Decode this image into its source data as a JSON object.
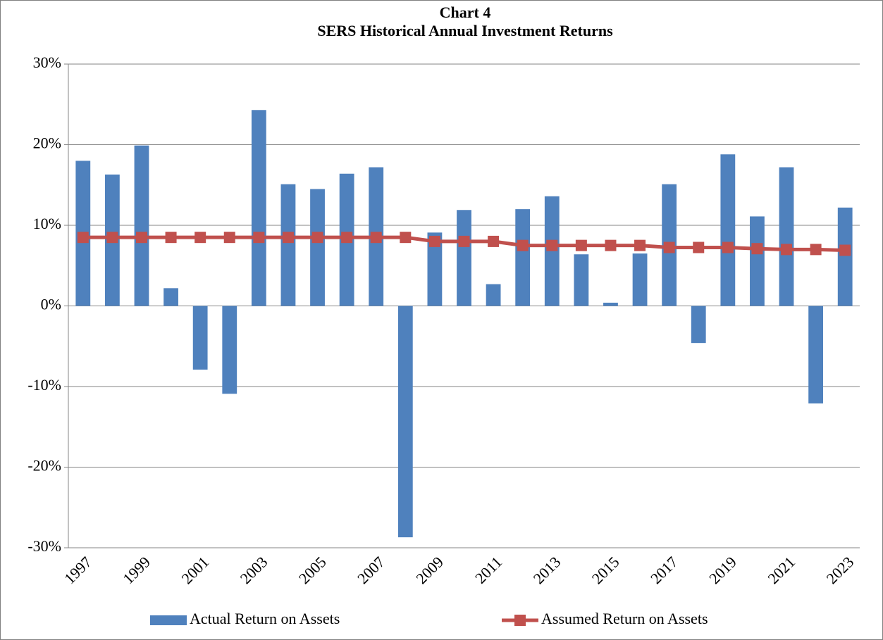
{
  "chart_data": {
    "type": "bar",
    "title": "Chart 4",
    "subtitle": "SERS Historical Annual Investment Returns",
    "categories": [
      "1997",
      null,
      "1999",
      null,
      "2001",
      null,
      "2003",
      null,
      "2005",
      null,
      "2007",
      null,
      "2009",
      null,
      "2011",
      null,
      "2013",
      null,
      "2015",
      null,
      "2017",
      null,
      "2019",
      null,
      "2021",
      null,
      "2023"
    ],
    "series": [
      {
        "name": "Actual Return on Assets",
        "type": "bar",
        "color": "#4f81bd",
        "values": [
          18.0,
          16.3,
          19.9,
          2.2,
          -7.9,
          -10.9,
          24.3,
          15.1,
          14.5,
          16.4,
          17.2,
          -28.7,
          9.1,
          11.9,
          2.7,
          12.0,
          13.6,
          6.4,
          0.4,
          6.5,
          15.1,
          -4.6,
          18.8,
          11.1,
          17.2,
          -12.1,
          12.2
        ]
      },
      {
        "name": "Assumed Return on Assets",
        "type": "line",
        "color": "#c0504d",
        "values": [
          8.5,
          8.5,
          8.5,
          8.5,
          8.5,
          8.5,
          8.5,
          8.5,
          8.5,
          8.5,
          8.5,
          8.5,
          8.0,
          8.0,
          8.0,
          7.5,
          7.5,
          7.5,
          7.5,
          7.5,
          7.25,
          7.25,
          7.25,
          7.1,
          7.0,
          7.0,
          6.9
        ]
      }
    ],
    "ylim": [
      -30,
      30
    ],
    "yticks": [
      {
        "value": -30,
        "label": "-30%"
      },
      {
        "value": -20,
        "label": "-20%"
      },
      {
        "value": -10,
        "label": "-10%"
      },
      {
        "value": 0,
        "label": "0%"
      },
      {
        "value": 10,
        "label": "10%"
      },
      {
        "value": 20,
        "label": "20%"
      },
      {
        "value": 30,
        "label": "30%"
      }
    ],
    "grid": true,
    "legend": "bottom"
  }
}
